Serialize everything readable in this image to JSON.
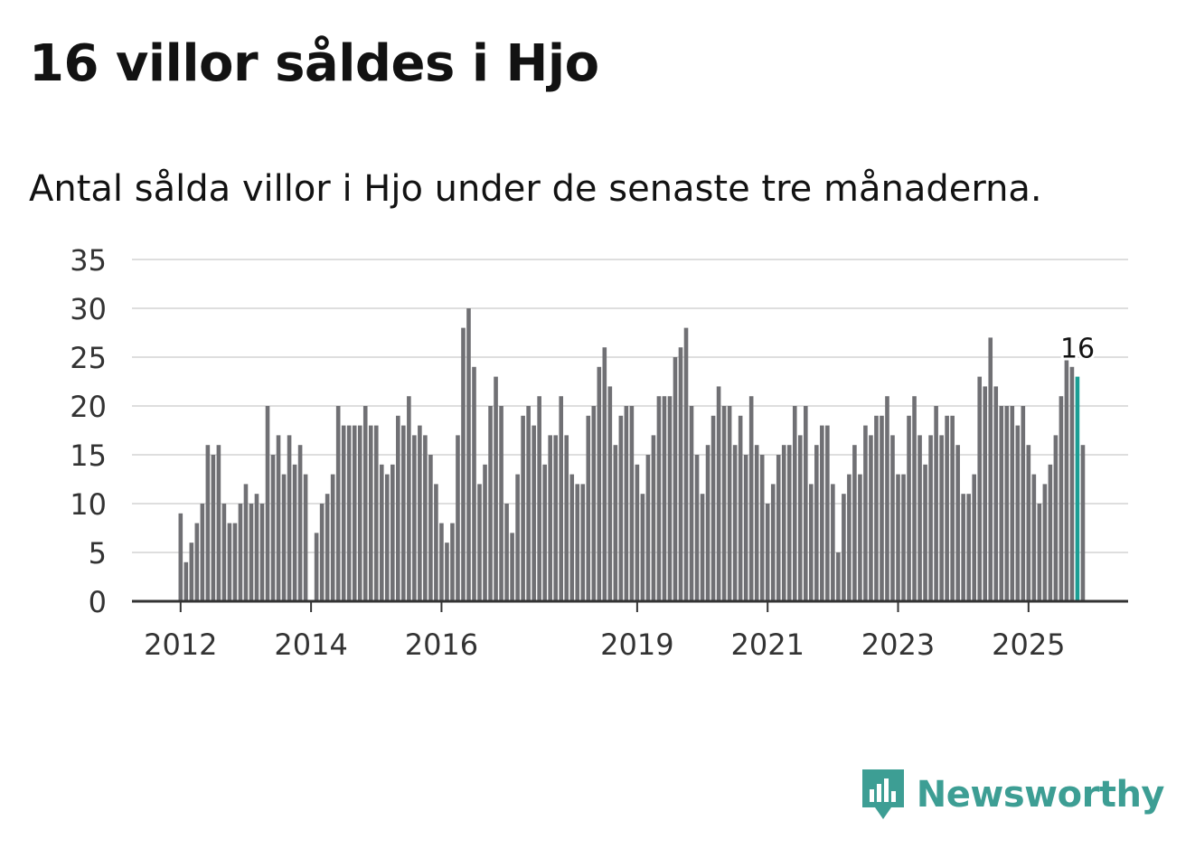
{
  "title": "16 villor såldes i Hjo",
  "subtitle": "Antal sålda villor i Hjo under de senaste tre månaderna.",
  "brand": {
    "name": "Newsworthy",
    "color": "#3d9e94",
    "icon": "newsworthy-logo-icon"
  },
  "colors": {
    "bar": "#707074",
    "highlight": "#1b9e94",
    "grid": "#dedede",
    "axis": "#333333",
    "text": "#121212"
  },
  "chart_data": {
    "type": "bar",
    "title": "16 villor såldes i Hjo",
    "subtitle": "Antal sålda villor i Hjo under de senaste tre månaderna.",
    "xlabel": "",
    "ylabel": "",
    "ylim": [
      0,
      35
    ],
    "yticks": [
      0,
      5,
      10,
      15,
      20,
      25,
      30,
      35
    ],
    "grid": true,
    "xtick_labels": [
      {
        "label": "2012",
        "index": 0
      },
      {
        "label": "2014",
        "index": 24
      },
      {
        "label": "2016",
        "index": 48
      },
      {
        "label": "2019",
        "index": 84
      },
      {
        "label": "2021",
        "index": 108
      },
      {
        "label": "2023",
        "index": 132
      },
      {
        "label": "2025",
        "index": 156
      }
    ],
    "highlight_index": 165,
    "highlight_label": "16",
    "values": [
      9,
      4,
      6,
      8,
      10,
      16,
      15,
      16,
      10,
      8,
      8,
      10,
      12,
      10,
      11,
      10,
      20,
      15,
      17,
      13,
      17,
      14,
      16,
      13,
      null,
      7,
      10,
      11,
      13,
      20,
      18,
      18,
      18,
      18,
      20,
      18,
      18,
      14,
      13,
      14,
      19,
      18,
      21,
      17,
      18,
      17,
      15,
      12,
      8,
      6,
      8,
      17,
      28,
      30,
      24,
      12,
      14,
      20,
      23,
      20,
      10,
      7,
      13,
      19,
      20,
      18,
      21,
      14,
      17,
      17,
      21,
      17,
      13,
      12,
      12,
      19,
      20,
      24,
      26,
      22,
      16,
      19,
      20,
      20,
      14,
      11,
      15,
      17,
      21,
      21,
      21,
      25,
      26,
      28,
      20,
      15,
      11,
      16,
      19,
      22,
      20,
      20,
      16,
      19,
      15,
      21,
      16,
      15,
      10,
      12,
      15,
      16,
      16,
      20,
      17,
      20,
      12,
      16,
      18,
      18,
      12,
      5,
      11,
      13,
      16,
      13,
      18,
      17,
      19,
      19,
      21,
      17,
      13,
      13,
      19,
      21,
      17,
      14,
      17,
      20,
      17,
      19,
      19,
      16,
      11,
      11,
      13,
      23,
      22,
      27,
      22,
      20,
      20,
      20,
      18,
      20,
      16,
      13,
      10,
      12,
      14,
      17,
      21,
      25,
      24,
      23,
      16
    ]
  }
}
